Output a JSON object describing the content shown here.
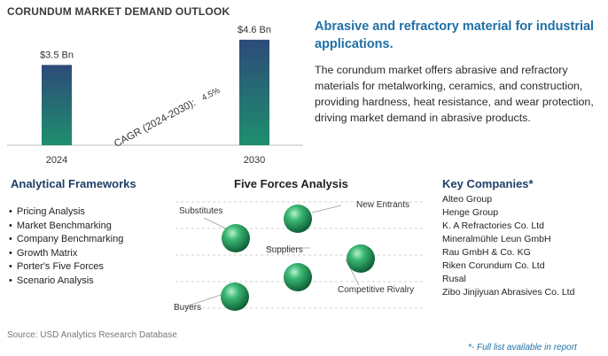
{
  "chart_data": {
    "type": "bar",
    "title": "CORUNDUM MARKET DEMAND OUTLOOK",
    "categories": [
      "2024",
      "2030"
    ],
    "values": [
      3.5,
      4.6
    ],
    "data_labels": [
      "$3.5 Bn",
      "$4.6 Bn"
    ],
    "annotation": "CAGR (2024-2030):",
    "annotation_value": "4.5%",
    "grid": false,
    "legend": "none"
  },
  "colors": {
    "bar_top": "#2d4a78",
    "bar_bottom": "#1e8f6e",
    "headline": "#1f6fa6",
    "section_title": "#1f3f66",
    "sphere": "#1f9a5a"
  },
  "headline": "Abrasive and refractory material for industrial applications.",
  "description": "The corundum market offers abrasive and refractory materials for metalworking, ceramics, and construction, providing hardness, heat resistance, and wear protection, driving market demand in abrasive products.",
  "frameworks": {
    "title": "Analytical Frameworks",
    "items": [
      "Pricing Analysis",
      "Market Benchmarking",
      "Company Benchmarking",
      "Growth Matrix",
      "Porter's Five Forces",
      "Scenario Analysis"
    ]
  },
  "five_forces": {
    "title": "Five Forces Analysis",
    "labels": {
      "substitutes": "Substitutes",
      "new_entrants": "New Entrants",
      "suppliers": "Suppliers",
      "competitive_rivalry": "Competitive Rivalry",
      "buyers": "Buyers"
    }
  },
  "companies": {
    "title": "Key Companies*",
    "items": [
      "Alteo Group",
      "Henge Group",
      "K. A Refractories Co. Ltd",
      "Mineralmühle Leun GmbH",
      "Rau GmbH & Co. KG",
      "Riken Corundum Co. Ltd",
      "Rusal",
      "Zibo Jinjiyuan Abrasives Co. Ltd"
    ]
  },
  "source": "Source: USD Analytics Research Database",
  "footnote": "*- Full list available in report"
}
